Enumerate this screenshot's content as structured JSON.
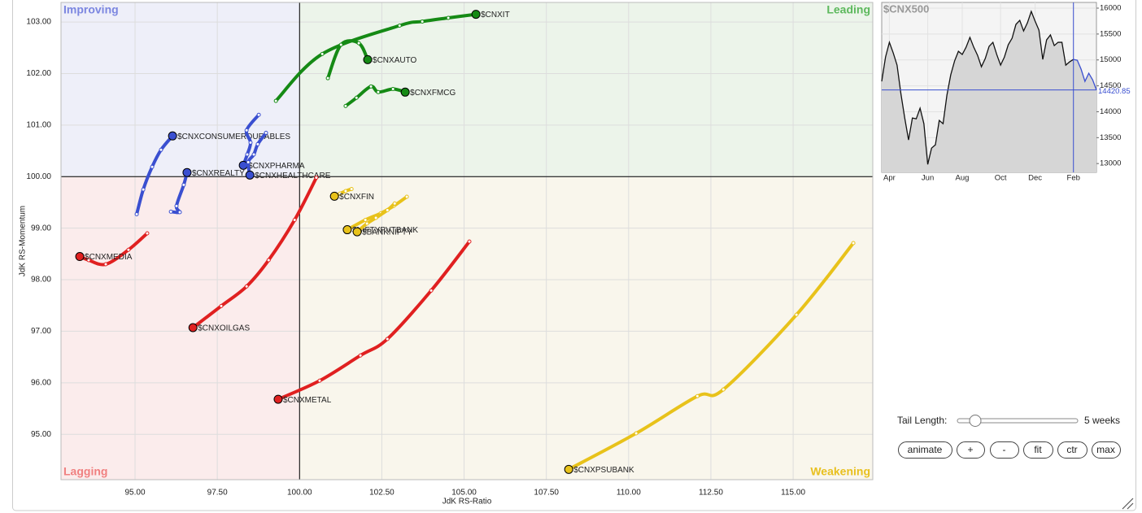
{
  "chart_data": [
    {
      "type": "rrg",
      "x_label": "JdK RS-Ratio",
      "y_label": "JdK RS-Momentum",
      "xlim": [
        92.75,
        117.42
      ],
      "ylim": [
        94.12,
        103.38
      ],
      "xticks": [
        {
          "value": 95,
          "label": "95.00"
        },
        {
          "value": 97.5,
          "label": "97.50"
        },
        {
          "value": 100,
          "label": "100.00"
        },
        {
          "value": 102.5,
          "label": "102.50"
        },
        {
          "value": 105,
          "label": "105.00"
        },
        {
          "value": 107.5,
          "label": "107.50"
        },
        {
          "value": 110,
          "label": "110.00"
        },
        {
          "value": 112.5,
          "label": "112.50"
        },
        {
          "value": 115,
          "label": "115.00"
        }
      ],
      "yticks": [
        {
          "value": 95,
          "label": "95.00"
        },
        {
          "value": 96,
          "label": "96.00"
        },
        {
          "value": 97,
          "label": "97.00"
        },
        {
          "value": 98,
          "label": "98.00"
        },
        {
          "value": 99,
          "label": "99.00"
        },
        {
          "value": 100,
          "label": "100.00"
        },
        {
          "value": 101,
          "label": "101.00"
        },
        {
          "value": 102,
          "label": "102.00"
        },
        {
          "value": 103,
          "label": "103.00"
        }
      ],
      "center": [
        100,
        100
      ],
      "grid": true,
      "quadrants": [
        {
          "name": "Improving",
          "position": "top-left",
          "color": "#7b86e0",
          "background": "#eeeff9"
        },
        {
          "name": "Leading",
          "position": "top-right",
          "color": "#5cb85c",
          "background": "#ecf4ea"
        },
        {
          "name": "Lagging",
          "position": "bottom-left",
          "color": "#f08080",
          "background": "#fbecec"
        },
        {
          "name": "Weakening",
          "position": "bottom-right",
          "color": "#e8c020",
          "background": "#f9f6ec"
        }
      ],
      "series": [
        {
          "name": "$CNXIT",
          "color": "#158a15",
          "x": [
            99.28,
            100.69,
            103.04,
            103.73,
            104.52,
            105.36
          ],
          "y": [
            101.47,
            102.38,
            102.93,
            103.01,
            103.08,
            103.15
          ]
        },
        {
          "name": "$CNXAUTO",
          "color": "#158a15",
          "x": [
            100.86,
            101.26,
            101.8,
            102.07
          ],
          "y": [
            101.91,
            102.56,
            102.59,
            102.27
          ]
        },
        {
          "name": "$CNXFMCG",
          "color": "#158a15",
          "x": [
            101.4,
            101.73,
            102.17,
            102.39,
            102.84,
            103.21
          ],
          "y": [
            101.37,
            101.53,
            101.75,
            101.64,
            101.7,
            101.64
          ]
        },
        {
          "name": "$CNXCONSUMERDURABLES",
          "color": "#3a4fd0",
          "x": [
            95.05,
            95.25,
            95.52,
            95.79,
            96.14
          ],
          "y": [
            99.27,
            99.75,
            100.19,
            100.52,
            100.79
          ]
        },
        {
          "name": "$CNXREALTY",
          "color": "#3a4fd0",
          "x": [
            96.09,
            96.36,
            96.26,
            96.48,
            96.58
          ],
          "y": [
            99.32,
            99.31,
            99.43,
            99.84,
            100.08
          ]
        },
        {
          "name": "$CNXPHARMA",
          "color": "#3a4fd0",
          "x": [
            98.76,
            98.39,
            98.51,
            98.41,
            98.29
          ],
          "y": [
            101.2,
            100.9,
            100.66,
            100.43,
            100.22
          ]
        },
        {
          "name": "$CNXHEALTHCARE",
          "color": "#3a4fd0",
          "x": [
            98.98,
            98.73,
            98.61,
            98.44,
            98.49
          ],
          "y": [
            100.85,
            100.63,
            100.43,
            100.28,
            100.03
          ]
        },
        {
          "name": "$CNXFIN",
          "color": "#e8c21a",
          "x": [
            101.58,
            101.4,
            101.23,
            101.06
          ],
          "y": [
            99.76,
            99.72,
            99.67,
            99.62
          ]
        },
        {
          "name": "$NIFTYPVTBANK",
          "color": "#e8c21a",
          "x": [
            103.26,
            102.86,
            102.47,
            102.0,
            101.45
          ],
          "y": [
            99.61,
            99.43,
            99.29,
            99.16,
            98.97
          ]
        },
        {
          "name": "$BANKNIFTY",
          "color": "#e8c21a",
          "x": [
            102.89,
            102.67,
            102.32,
            102.05,
            101.75
          ],
          "y": [
            99.48,
            99.35,
            99.2,
            99.09,
            98.93
          ]
        },
        {
          "name": "$CNXMEDIA",
          "color": "#e02020",
          "x": [
            95.37,
            94.8,
            94.11,
            93.59,
            93.32
          ],
          "y": [
            98.9,
            98.58,
            98.3,
            98.38,
            98.45
          ]
        },
        {
          "name": "$CNXOILGAS",
          "color": "#e02020",
          "x": [
            100.51,
            99.85,
            99.06,
            98.39,
            97.62,
            96.76
          ],
          "y": [
            99.98,
            99.16,
            98.38,
            97.87,
            97.49,
            97.07
          ]
        },
        {
          "name": "$CNXMETAL",
          "color": "#e02020",
          "x": [
            105.16,
            104.0,
            102.67,
            101.85,
            100.61,
            99.35
          ],
          "y": [
            98.74,
            97.79,
            96.85,
            96.53,
            96.04,
            95.68
          ]
        },
        {
          "name": "$CNXPSUBANK",
          "color": "#e8c21a",
          "x": [
            116.83,
            115.1,
            112.88,
            112.09,
            110.23,
            108.18
          ],
          "y": [
            98.71,
            97.32,
            95.87,
            95.74,
            95.02,
            94.32
          ]
        }
      ]
    },
    {
      "type": "line",
      "title": "$CNX500",
      "color": "#111111",
      "highlight_color": "#3a4fd0",
      "marker_x": 50,
      "xlim": [
        0,
        56
      ],
      "ylim": [
        12830,
        16110
      ],
      "xticks": [
        {
          "value": 2,
          "label": "Apr"
        },
        {
          "value": 12,
          "label": "Jun"
        },
        {
          "value": 21,
          "label": "Aug"
        },
        {
          "value": 31,
          "label": "Oct"
        },
        {
          "value": 40,
          "label": "Dec"
        },
        {
          "value": 50,
          "label": "Feb"
        }
      ],
      "yticks": [
        13000,
        13500,
        14000,
        14500,
        15000,
        15500,
        16000
      ],
      "values": [
        14586,
        15057,
        15340,
        15136,
        14900,
        14350,
        13879,
        13455,
        13879,
        13863,
        14068,
        13769,
        12984,
        13298,
        13361,
        13832,
        13769,
        14319,
        14712,
        14979,
        15167,
        15105,
        15246,
        15434,
        15246,
        15089,
        14869,
        15026,
        15262,
        15340,
        15105,
        14900,
        15057,
        15293,
        15419,
        15686,
        15764,
        15560,
        15717,
        15937,
        15749,
        15576,
        15010,
        15387,
        15482,
        15277,
        15340,
        15340,
        14900,
        14963,
        15010,
        14994,
        14821,
        14586,
        14743,
        14617,
        14420.85
      ]
    }
  ],
  "controls": {
    "tail_label": "Tail Length:",
    "tail_value": "5 weeks",
    "buttons": [
      "animate",
      "+",
      "-",
      "fit",
      "ctr",
      "max"
    ]
  }
}
